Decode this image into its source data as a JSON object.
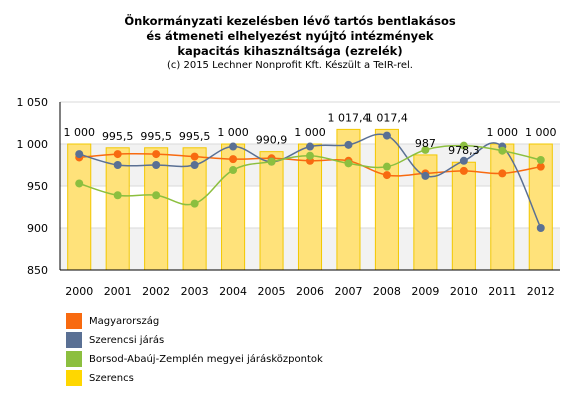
{
  "title_lines": [
    "Önkormányzati kezelésben lévő tartós bentlakásos",
    "és átmeneti elhelyezést nyújtó intézmények",
    "kapacitás kihasználtsága (ezrelék)"
  ],
  "subtitle": "(c) 2015 Lechner Nonprofit Kft. Készült a TeIR-rel.",
  "colors": {
    "bars": "#FFE27A",
    "bar_stroke": "#F2C800",
    "grid": "#d9d9d9",
    "band": "#f2f2f2"
  },
  "chart_data": {
    "type": "bar+line",
    "categories": [
      "2000",
      "2001",
      "2002",
      "2003",
      "2004",
      "2005",
      "2006",
      "2007",
      "2008",
      "2009",
      "2010",
      "2011",
      "2012"
    ],
    "ylim": [
      850,
      1050
    ],
    "yticks": [
      850,
      900,
      950,
      1000,
      1050
    ],
    "ytick_labels": [
      "850",
      "900",
      "950",
      "1 000",
      "1 050"
    ],
    "grid": true,
    "legend_placement": "bottom-left",
    "bar_series": {
      "name": "Szerencs",
      "color": "#FFD700",
      "values": [
        1000,
        995.5,
        995.5,
        995.5,
        1000,
        990.9,
        1000,
        1017.4,
        1017.4,
        987,
        978.3,
        1000,
        1000
      ],
      "labels": [
        "1 000",
        "995,5",
        "995,5",
        "995,5",
        "1 000",
        "990,9",
        "1 000",
        "1 017,4",
        "1 017,4",
        "987",
        "978,3",
        "1 000",
        "1 000"
      ]
    },
    "line_series": [
      {
        "name": "Magyarország",
        "color": "#F86A10",
        "values": [
          984,
          988,
          988,
          985,
          982,
          983,
          980,
          980,
          963,
          965,
          968,
          965,
          973
        ]
      },
      {
        "name": "Szerencsi járás",
        "color": "#5A7094",
        "values": [
          988,
          975,
          975,
          975,
          997,
          979,
          997,
          999,
          1010,
          962,
          980,
          997,
          900
        ]
      },
      {
        "name": "Borsod-Abaúj-Zemplén megyei járásközpontok",
        "color": "#8CBF3F",
        "values": [
          953,
          939,
          939,
          929,
          969,
          979,
          986,
          977,
          973,
          993,
          998,
          992,
          981
        ]
      }
    ],
    "legend": [
      {
        "name": "Magyarország",
        "color": "#F86A10"
      },
      {
        "name": "Szerencsi járás",
        "color": "#5A7094"
      },
      {
        "name": "Borsod-Abaúj-Zemplén megyei járásközpontok",
        "color": "#8CBF3F"
      },
      {
        "name": "Szerencs",
        "color": "#FFD700"
      }
    ]
  }
}
